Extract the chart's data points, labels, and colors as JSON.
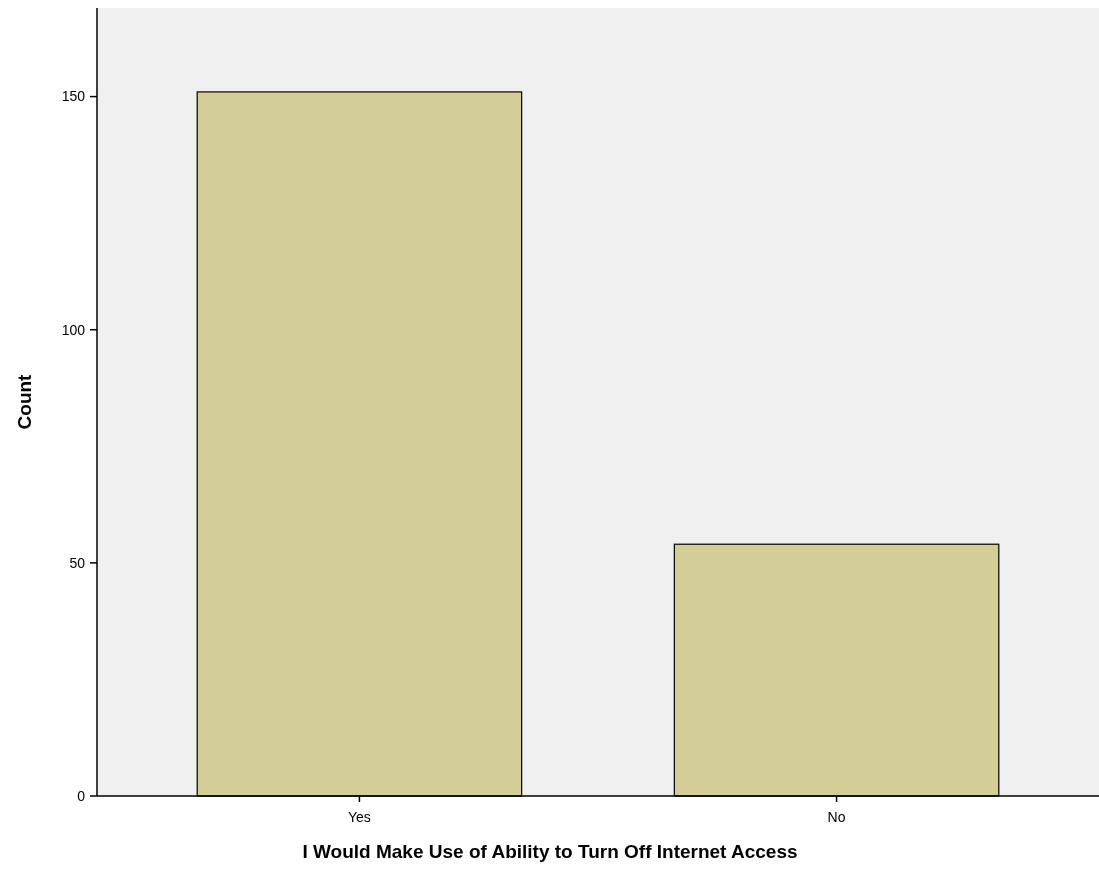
{
  "chart_data": {
    "type": "bar",
    "xlabel": "I Would Make Use of Ability to Turn Off Internet Access",
    "ylabel": "Count",
    "categories": [
      "Yes",
      "No"
    ],
    "values": [
      151,
      54
    ],
    "color": "#d3cd98",
    "ylim": [
      0,
      169
    ],
    "yticks": [
      0,
      50,
      100,
      150
    ],
    "grid": false
  }
}
